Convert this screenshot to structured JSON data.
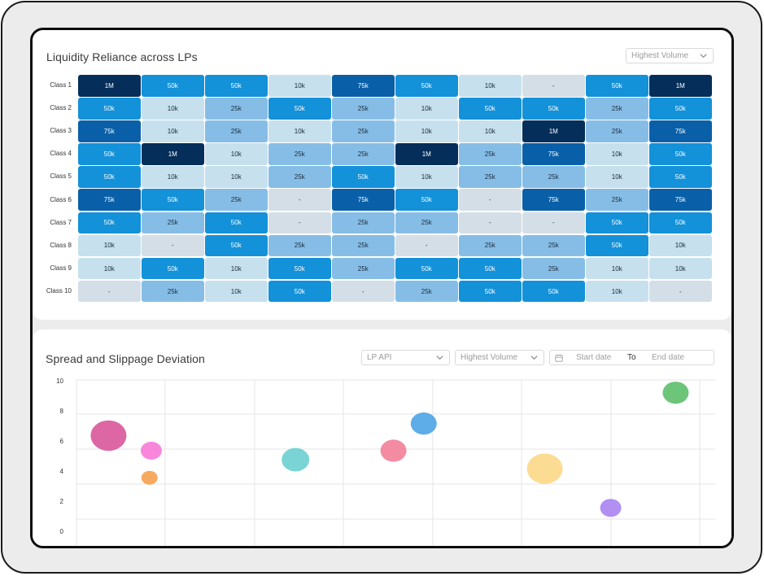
{
  "heatmap": {
    "title": "Liquidity Reliance across LPs",
    "sort_select": "Highest Volume",
    "rows": [
      {
        "label": "Class 1",
        "cells": [
          "1M",
          "50k",
          "50k",
          "10k",
          "75k",
          "50k",
          "10k",
          "-",
          "50k",
          "1M"
        ]
      },
      {
        "label": "Class 2",
        "cells": [
          "50k",
          "10k",
          "25k",
          "50k",
          "25k",
          "10k",
          "50k",
          "50k",
          "25k",
          "50k"
        ]
      },
      {
        "label": "Class 3",
        "cells": [
          "75k",
          "10k",
          "25k",
          "10k",
          "25k",
          "10k",
          "10k",
          "1M",
          "25k",
          "75k"
        ]
      },
      {
        "label": "Class 4",
        "cells": [
          "50k",
          "1M",
          "10k",
          "25k",
          "25k",
          "1M",
          "25k",
          "75k",
          "10k",
          "50k"
        ]
      },
      {
        "label": "Class 5",
        "cells": [
          "50k",
          "10k",
          "10k",
          "25k",
          "50k",
          "10k",
          "25k",
          "25k",
          "10k",
          "50k"
        ]
      },
      {
        "label": "Class 6",
        "cells": [
          "75k",
          "50k",
          "25k",
          "-",
          "75k",
          "50k",
          "-",
          "75k",
          "25k",
          "75k"
        ]
      },
      {
        "label": "Class 7",
        "cells": [
          "50k",
          "25k",
          "50k",
          "-",
          "25k",
          "25k",
          "-",
          "-",
          "50k",
          "50k"
        ]
      },
      {
        "label": "Class 8",
        "cells": [
          "10k",
          "-",
          "50k",
          "25k",
          "25k",
          "-",
          "25k",
          "25k",
          "50k",
          "10k"
        ]
      },
      {
        "label": "Class 9",
        "cells": [
          "10k",
          "50k",
          "10k",
          "50k",
          "25k",
          "50k",
          "50k",
          "25k",
          "10k",
          "10k"
        ]
      },
      {
        "label": "Class 10",
        "cells": [
          "-",
          "25k",
          "10k",
          "50k",
          "-",
          "25k",
          "50k",
          "50k",
          "10k",
          "-"
        ]
      }
    ],
    "colors": {
      "1M": {
        "bg": "#052f5a",
        "fg": "#ffffff"
      },
      "75k": {
        "bg": "#0a60a8",
        "fg": "#ffffff"
      },
      "50k": {
        "bg": "#1391d9",
        "fg": "#ffffff"
      },
      "25k": {
        "bg": "#86bde6",
        "fg": "#1b2b3a"
      },
      "10k": {
        "bg": "#c6e0ee",
        "fg": "#1b2b3a"
      },
      "-": {
        "bg": "#d4dee6",
        "fg": "#333333"
      }
    }
  },
  "bubble": {
    "title": "Spread and Slippage Deviation",
    "lp_select": "LP API",
    "volume_select": "Highest Volume",
    "start_placeholder": "Start date",
    "to_label": "To",
    "end_placeholder": "End date",
    "y_ticks": [
      "10",
      "8",
      "6",
      "4",
      "2",
      "0"
    ]
  },
  "chart_data": {
    "type": "scatter",
    "title": "Spread and Slippage Deviation",
    "xlabel": "",
    "ylabel": "",
    "ylim": [
      0,
      10
    ],
    "xlim": [
      0,
      8
    ],
    "grid": true,
    "points": [
      {
        "x": 0.36,
        "y": 6.3,
        "r": 22,
        "color": "#d9569a"
      },
      {
        "x": 0.84,
        "y": 5.3,
        "r": 13,
        "color": "#f77ad8"
      },
      {
        "x": 0.82,
        "y": 3.5,
        "r": 10,
        "color": "#f6a14e"
      },
      {
        "x": 2.46,
        "y": 4.7,
        "r": 17,
        "color": "#6ccfd2"
      },
      {
        "x": 3.56,
        "y": 5.3,
        "r": 16,
        "color": "#f27f98"
      },
      {
        "x": 3.9,
        "y": 7.1,
        "r": 16,
        "color": "#4da3e6"
      },
      {
        "x": 5.26,
        "y": 4.1,
        "r": 22,
        "color": "#fcd887"
      },
      {
        "x": 6.0,
        "y": 1.5,
        "r": 13,
        "color": "#a883f2"
      },
      {
        "x": 6.73,
        "y": 9.15,
        "r": 16,
        "color": "#5cbf6a"
      }
    ]
  }
}
